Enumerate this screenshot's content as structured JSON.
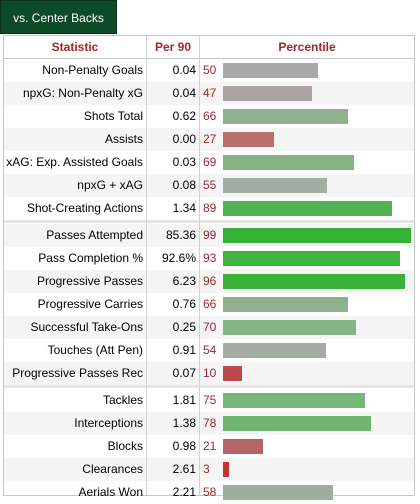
{
  "tab": {
    "label": "vs. Center Backs"
  },
  "table": {
    "headers": {
      "statistic": "Statistic",
      "per90": "Per 90",
      "percentile": "Percentile"
    },
    "groups": [
      {
        "rows": [
          {
            "stat": "Non-Penalty Goals",
            "per90": "0.04",
            "percentile": 50,
            "color": "#a9a9a9"
          },
          {
            "stat": "npxG: Non-Penalty xG",
            "per90": "0.04",
            "percentile": 47,
            "color": "#ada4a4"
          },
          {
            "stat": "Shots Total",
            "per90": "0.62",
            "percentile": 66,
            "color": "#8fb08f"
          },
          {
            "stat": "Assists",
            "per90": "0.00",
            "percentile": 27,
            "color": "#b86f6f"
          },
          {
            "stat": "xAG: Exp. Assisted Goals",
            "per90": "0.03",
            "percentile": 69,
            "color": "#86b386"
          },
          {
            "stat": "npxG + xAG",
            "per90": "0.08",
            "percentile": 55,
            "color": "#a2aea2"
          },
          {
            "stat": "Shot-Creating Actions",
            "per90": "1.34",
            "percentile": 89,
            "color": "#4fb14f"
          }
        ]
      },
      {
        "rows": [
          {
            "stat": "Passes Attempted",
            "per90": "85.36",
            "percentile": 99,
            "color": "#35b135"
          },
          {
            "stat": "Pass Completion %",
            "per90": "92.6%",
            "percentile": 93,
            "color": "#40b440"
          },
          {
            "stat": "Progressive Passes",
            "per90": "6.23",
            "percentile": 96,
            "color": "#3ab23a"
          },
          {
            "stat": "Progressive Carries",
            "per90": "0.76",
            "percentile": 66,
            "color": "#8fb08f"
          },
          {
            "stat": "Successful Take-Ons",
            "per90": "0.25",
            "percentile": 70,
            "color": "#84b584"
          },
          {
            "stat": "Touches (Att Pen)",
            "per90": "0.91",
            "percentile": 54,
            "color": "#a4ada4"
          },
          {
            "stat": "Progressive Passes Rec",
            "per90": "0.07",
            "percentile": 10,
            "color": "#b84a4a"
          }
        ]
      },
      {
        "rows": [
          {
            "stat": "Tackles",
            "per90": "1.81",
            "percentile": 75,
            "color": "#76b676"
          },
          {
            "stat": "Interceptions",
            "per90": "1.38",
            "percentile": 78,
            "color": "#6eb66e"
          },
          {
            "stat": "Blocks",
            "per90": "0.98",
            "percentile": 21,
            "color": "#b46666"
          },
          {
            "stat": "Clearances",
            "per90": "2.61",
            "percentile": 3,
            "color": "#c03434"
          },
          {
            "stat": "Aerials Won",
            "per90": "2.21",
            "percentile": 58,
            "color": "#9eae9e"
          }
        ]
      }
    ]
  }
}
